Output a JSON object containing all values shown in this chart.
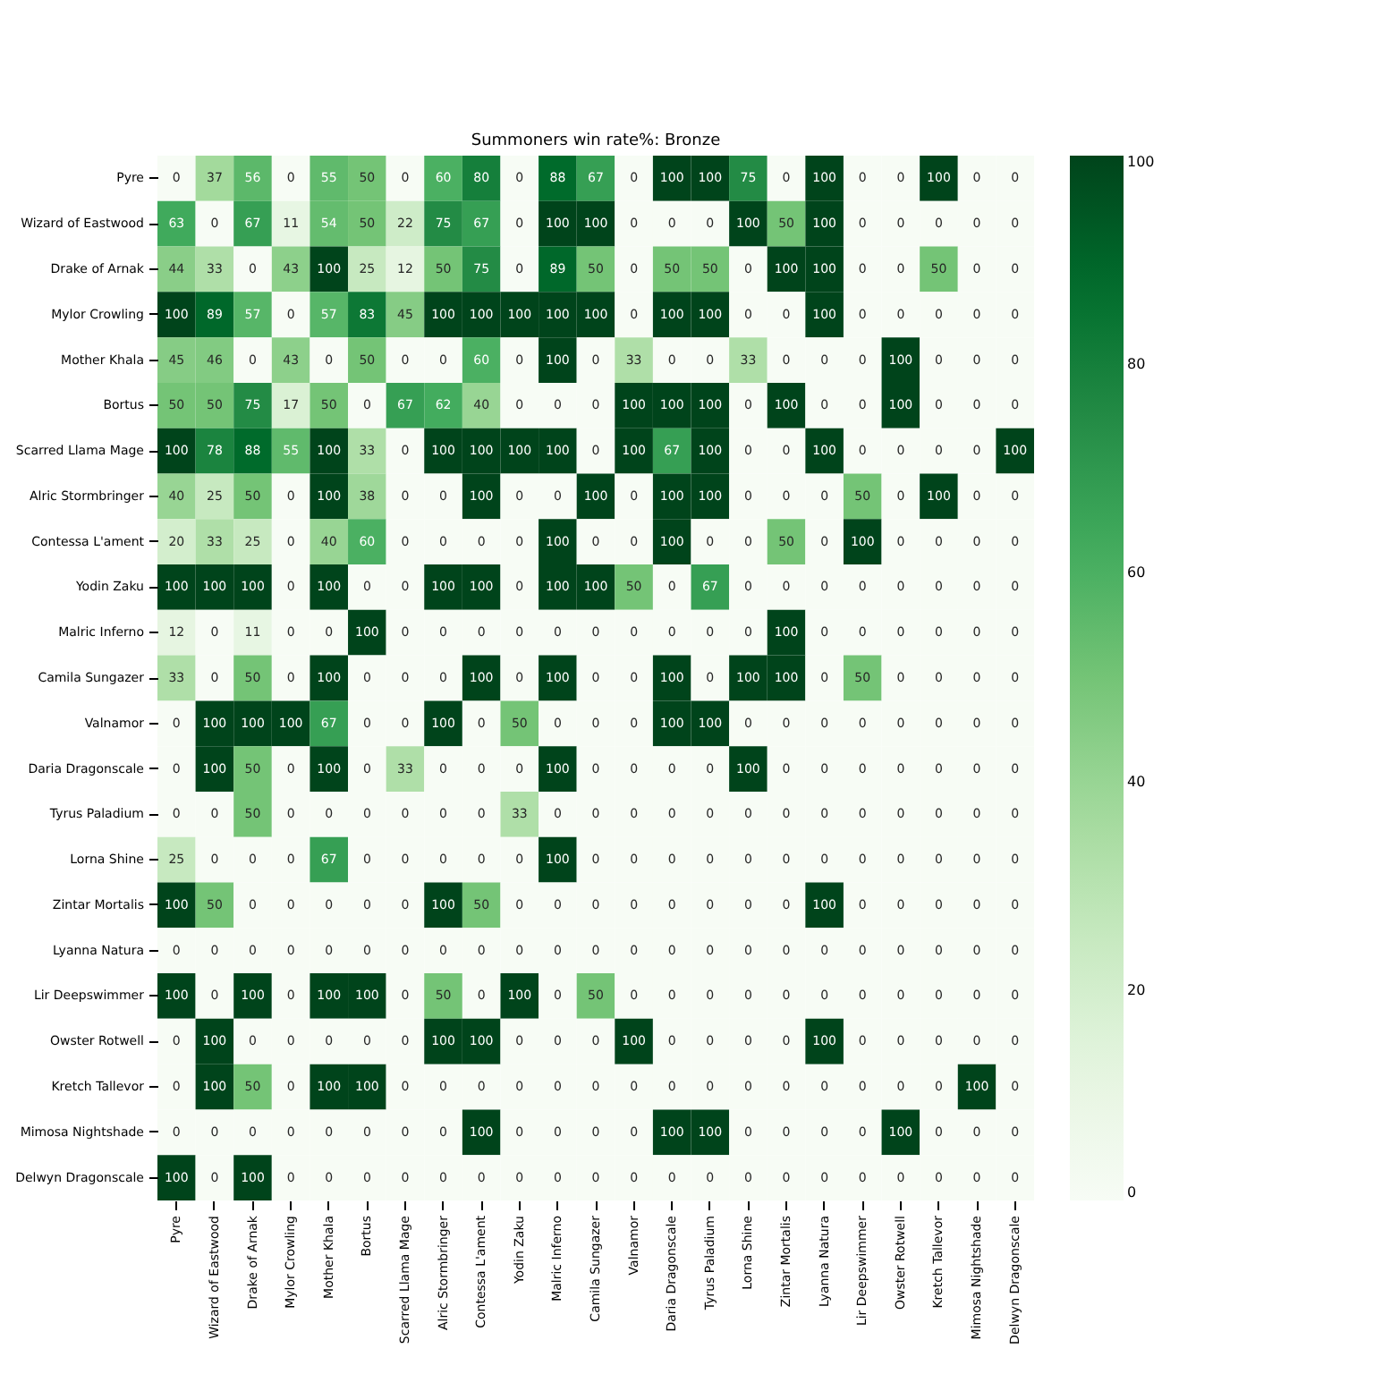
{
  "chart_data": {
    "type": "heatmap",
    "title": "Summoners win rate%: Bronze",
    "categories": [
      "Pyre",
      "Wizard of Eastwood",
      "Drake of Arnak",
      "Mylor Crowling",
      "Mother Khala",
      "Bortus",
      "Scarred Llama Mage",
      "Alric Stormbringer",
      "Contessa L'ament",
      "Yodin Zaku",
      "Malric Inferno",
      "Camila Sungazer",
      "Valnamor",
      "Daria Dragonscale",
      "Tyrus Paladium",
      "Lorna Shine",
      "Zintar Mortalis",
      "Lyanna Natura",
      "Lir Deepswimmer",
      "Owster Rotwell",
      "Kretch Tallevor",
      "Mimosa Nightshade",
      "Delwyn Dragonscale"
    ],
    "y_categories": [
      "Pyre",
      "Wizard of Eastwood",
      "Drake of Arnak",
      "Mylor Crowling",
      "Mother Khala",
      "Bortus",
      "Scarred Llama Mage",
      "Alric Stormbringer",
      "Contessa L'ament",
      "Yodin Zaku",
      "Malric Inferno",
      "Camila Sungazer",
      "Valnamor",
      "Daria Dragonscale",
      "Tyrus Paladium",
      "Lorna Shine",
      "Zintar Mortalis",
      "Lyanna Natura",
      "Lir Deepswimmer",
      "Owster Rotwell",
      "Kretch Tallevor",
      "Mimosa Nightshade",
      "Delwyn Dragonscale"
    ],
    "cells": [
      [
        0,
        37,
        56,
        0,
        55,
        50,
        0,
        60,
        80,
        0,
        88,
        67,
        0,
        100,
        100,
        75,
        0,
        100,
        0,
        0,
        100,
        0,
        0
      ],
      [
        63,
        0,
        67,
        11,
        54,
        50,
        22,
        75,
        67,
        0,
        100,
        100,
        0,
        0,
        0,
        100,
        50,
        100,
        0,
        0,
        0,
        0,
        0
      ],
      [
        44,
        33,
        0,
        43,
        100,
        25,
        12,
        50,
        75,
        0,
        89,
        50,
        0,
        50,
        50,
        0,
        100,
        100,
        0,
        0,
        50,
        0,
        0
      ],
      [
        100,
        89,
        57,
        0,
        57,
        83,
        45,
        100,
        100,
        100,
        100,
        100,
        0,
        100,
        100,
        0,
        0,
        100,
        0,
        0,
        0,
        0,
        0
      ],
      [
        45,
        46,
        0,
        43,
        0,
        50,
        0,
        0,
        60,
        0,
        100,
        0,
        33,
        0,
        0,
        33,
        0,
        0,
        0,
        100,
        0,
        0,
        0
      ],
      [
        50,
        50,
        75,
        17,
        50,
        0,
        67,
        62,
        40,
        0,
        0,
        0,
        100,
        100,
        100,
        0,
        100,
        0,
        0,
        100,
        0,
        0,
        0
      ],
      [
        100,
        78,
        88,
        55,
        100,
        33,
        0,
        100,
        100,
        100,
        100,
        0,
        100,
        67,
        100,
        0,
        0,
        100,
        0,
        0,
        0,
        0,
        100
      ],
      [
        40,
        25,
        50,
        0,
        100,
        38,
        0,
        0,
        100,
        0,
        0,
        100,
        0,
        100,
        100,
        0,
        0,
        0,
        50,
        0,
        100,
        0,
        0
      ],
      [
        20,
        33,
        25,
        0,
        40,
        60,
        0,
        0,
        0,
        0,
        100,
        0,
        0,
        100,
        0,
        0,
        50,
        0,
        100,
        0,
        0,
        0,
        0
      ],
      [
        100,
        100,
        100,
        0,
        100,
        0,
        0,
        100,
        100,
        0,
        100,
        100,
        50,
        0,
        67,
        0,
        0,
        0,
        0,
        0,
        0,
        0,
        0
      ],
      [
        12,
        0,
        11,
        0,
        0,
        100,
        0,
        0,
        0,
        0,
        0,
        0,
        0,
        0,
        0,
        0,
        100,
        0,
        0,
        0,
        0,
        0,
        0
      ],
      [
        33,
        0,
        50,
        0,
        100,
        0,
        0,
        0,
        100,
        0,
        100,
        0,
        0,
        100,
        0,
        100,
        100,
        0,
        50,
        0,
        0,
        0,
        0
      ],
      [
        0,
        100,
        100,
        100,
        67,
        0,
        0,
        100,
        0,
        50,
        0,
        0,
        0,
        100,
        100,
        0,
        0,
        0,
        0,
        0,
        0,
        0,
        0
      ],
      [
        0,
        100,
        50,
        0,
        100,
        0,
        33,
        0,
        0,
        0,
        100,
        0,
        0,
        0,
        0,
        100,
        0,
        0,
        0,
        0,
        0,
        0,
        0
      ],
      [
        0,
        0,
        50,
        0,
        0,
        0,
        0,
        0,
        0,
        33,
        0,
        0,
        0,
        0,
        0,
        0,
        0,
        0,
        0,
        0,
        0,
        0,
        0
      ],
      [
        25,
        0,
        0,
        0,
        67,
        0,
        0,
        0,
        0,
        0,
        100,
        0,
        0,
        0,
        0,
        0,
        0,
        0,
        0,
        0,
        0,
        0,
        0
      ],
      [
        100,
        50,
        0,
        0,
        0,
        0,
        0,
        100,
        50,
        0,
        0,
        0,
        0,
        0,
        0,
        0,
        0,
        100,
        0,
        0,
        0,
        0,
        0
      ],
      [
        0,
        0,
        0,
        0,
        0,
        0,
        0,
        0,
        0,
        0,
        0,
        0,
        0,
        0,
        0,
        0,
        0,
        0,
        0,
        0,
        0,
        0,
        0
      ],
      [
        100,
        0,
        100,
        0,
        100,
        100,
        0,
        50,
        0,
        100,
        0,
        50,
        0,
        0,
        0,
        0,
        0,
        0,
        0,
        0,
        0,
        0,
        0
      ],
      [
        0,
        100,
        0,
        0,
        0,
        0,
        0,
        100,
        100,
        0,
        0,
        0,
        100,
        0,
        0,
        0,
        0,
        100,
        0,
        0,
        0,
        0,
        0
      ],
      [
        0,
        100,
        50,
        0,
        100,
        100,
        0,
        0,
        0,
        0,
        0,
        0,
        0,
        0,
        0,
        0,
        0,
        0,
        0,
        0,
        0,
        100,
        0
      ],
      [
        0,
        0,
        0,
        0,
        0,
        0,
        0,
        0,
        100,
        0,
        0,
        0,
        0,
        100,
        100,
        0,
        0,
        0,
        0,
        100,
        0,
        0,
        0
      ],
      [
        100,
        0,
        100,
        0,
        0,
        0,
        0,
        0,
        0,
        0,
        0,
        0,
        0,
        0,
        0,
        0,
        0,
        0,
        0,
        0,
        0,
        0,
        0
      ]
    ],
    "clim": [
      0,
      100
    ],
    "cticks": [
      0,
      20,
      40,
      60,
      80,
      100
    ],
    "data_labels": true
  }
}
